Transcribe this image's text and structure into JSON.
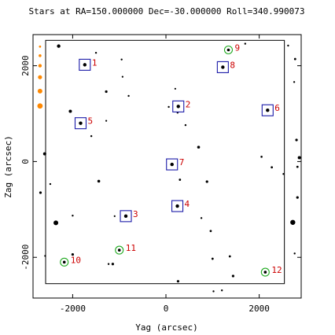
{
  "colors": {
    "guide_box": "#1a1aa8",
    "acq_circle": "#22aa22",
    "label": "#cc0000",
    "legend_dot": "#ff8800",
    "star": "#000000"
  },
  "chart_data": {
    "type": "scatter",
    "title": "Stars at RA=150.000000 Dec=-30.000000 Roll=340.990073",
    "xlabel": "Yag (arcsec)",
    "ylabel": "Zag (arcsec)",
    "xlim": [
      -2850,
      2900
    ],
    "ylim": [
      -2850,
      2650
    ],
    "xticks": [
      {
        "value": -2000,
        "label": "-2000"
      },
      {
        "value": 0,
        "label": "0"
      },
      {
        "value": 2000,
        "label": "2000"
      }
    ],
    "yticks": [
      {
        "value": -2000,
        "label": "-2000"
      },
      {
        "value": 0,
        "label": "0"
      },
      {
        "value": 2000,
        "label": "2000"
      }
    ],
    "field_box": {
      "x": [
        -2580,
        2540
      ],
      "y": [
        -2550,
        2530
      ]
    },
    "guide_stars": [
      {
        "id": "1",
        "x": -1740,
        "y": 2020
      },
      {
        "id": "2",
        "x": 265,
        "y": 1150
      },
      {
        "id": "3",
        "x": -860,
        "y": -1140
      },
      {
        "id": "4",
        "x": 245,
        "y": -930
      },
      {
        "id": "5",
        "x": -1830,
        "y": 800
      },
      {
        "id": "6",
        "x": 2180,
        "y": 1070
      },
      {
        "id": "7",
        "x": 130,
        "y": -60
      },
      {
        "id": "8",
        "x": 1220,
        "y": 1970
      }
    ],
    "acq_stars": [
      {
        "id": "9",
        "x": 1340,
        "y": 2330
      },
      {
        "id": "10",
        "x": -2180,
        "y": -2100
      },
      {
        "id": "11",
        "x": -1000,
        "y": -1850
      },
      {
        "id": "12",
        "x": 2130,
        "y": -2310
      }
    ],
    "field_stars": [
      {
        "x": -2300,
        "y": 2410,
        "s": 2.2
      },
      {
        "x": -1500,
        "y": 2270,
        "s": 1.2
      },
      {
        "x": -950,
        "y": 2130,
        "s": 1.2
      },
      {
        "x": -930,
        "y": 1770,
        "s": 1.1
      },
      {
        "x": -1280,
        "y": 1460,
        "s": 1.6
      },
      {
        "x": -800,
        "y": 1370,
        "s": 1.2
      },
      {
        "x": -2050,
        "y": 1050,
        "s": 2.0
      },
      {
        "x": -1280,
        "y": 850,
        "s": 1.1
      },
      {
        "x": -1600,
        "y": 530,
        "s": 1.2
      },
      {
        "x": -2600,
        "y": 160,
        "s": 2.0
      },
      {
        "x": 60,
        "y": 1140,
        "s": 1.2
      },
      {
        "x": 250,
        "y": 1020,
        "s": 1.2
      },
      {
        "x": 420,
        "y": 760,
        "s": 1.2
      },
      {
        "x": 700,
        "y": 300,
        "s": 1.8
      },
      {
        "x": 200,
        "y": 1520,
        "s": 1.1
      },
      {
        "x": 300,
        "y": -380,
        "s": 1.4
      },
      {
        "x": 880,
        "y": -420,
        "s": 1.6
      },
      {
        "x": -1440,
        "y": -410,
        "s": 1.8
      },
      {
        "x": -2480,
        "y": -470,
        "s": 1.2
      },
      {
        "x": -2690,
        "y": -650,
        "s": 1.6
      },
      {
        "x": -2360,
        "y": -1280,
        "s": 3.0
      },
      {
        "x": -2000,
        "y": -1130,
        "s": 1.2
      },
      {
        "x": 960,
        "y": -1450,
        "s": 1.4
      },
      {
        "x": 760,
        "y": -1180,
        "s": 1.2
      },
      {
        "x": 1370,
        "y": -1980,
        "s": 1.4
      },
      {
        "x": 1000,
        "y": -2030,
        "s": 1.4
      },
      {
        "x": 1440,
        "y": -2390,
        "s": 1.6
      },
      {
        "x": 260,
        "y": -2500,
        "s": 1.6
      },
      {
        "x": 1020,
        "y": -2710,
        "s": 1.2
      },
      {
        "x": 1200,
        "y": -2690,
        "s": 1.2
      },
      {
        "x": -1140,
        "y": -2140,
        "s": 1.6
      },
      {
        "x": -1230,
        "y": -2140,
        "s": 1.2
      },
      {
        "x": -2000,
        "y": -1940,
        "s": 1.6
      },
      {
        "x": -2590,
        "y": -1970,
        "s": 1.2
      },
      {
        "x": 2050,
        "y": 100,
        "s": 1.3
      },
      {
        "x": 2270,
        "y": -120,
        "s": 1.4
      },
      {
        "x": 2750,
        "y": 1660,
        "s": 1.2
      },
      {
        "x": 2800,
        "y": 450,
        "s": 1.6
      },
      {
        "x": 2860,
        "y": 80,
        "s": 2.0
      },
      {
        "x": 2820,
        "y": -110,
        "s": 1.4
      },
      {
        "x": 2520,
        "y": -260,
        "s": 1.2
      },
      {
        "x": 2820,
        "y": -750,
        "s": 1.6
      },
      {
        "x": 2720,
        "y": -1270,
        "s": 3.2
      },
      {
        "x": 2760,
        "y": -1920,
        "s": 1.2
      },
      {
        "x": 2770,
        "y": 2140,
        "s": 1.4
      },
      {
        "x": 2620,
        "y": 2420,
        "s": 1.2
      },
      {
        "x": 1700,
        "y": 2460,
        "s": 1.2
      },
      {
        "x": -1100,
        "y": -1140,
        "s": 1.1
      }
    ],
    "legend_dots": [
      {
        "x": -2700,
        "y": 2400,
        "s": 1.4
      },
      {
        "x": -2700,
        "y": 2210,
        "s": 1.8
      },
      {
        "x": -2700,
        "y": 2000,
        "s": 2.2
      },
      {
        "x": -2700,
        "y": 1760,
        "s": 2.6
      },
      {
        "x": -2700,
        "y": 1470,
        "s": 3.0
      },
      {
        "x": -2700,
        "y": 1160,
        "s": 3.4
      }
    ]
  }
}
